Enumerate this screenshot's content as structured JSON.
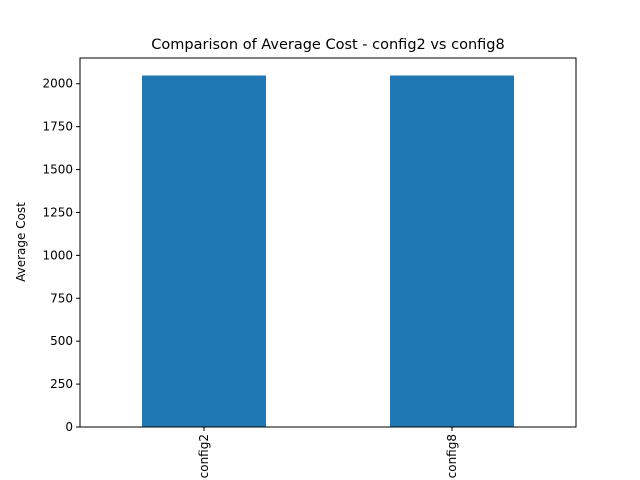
{
  "chart_data": {
    "type": "bar",
    "title": "Comparison of Average Cost - config2 vs config8",
    "xlabel": "",
    "ylabel": "Average Cost",
    "categories": [
      "config2",
      "config8"
    ],
    "values": [
      2048,
      2048
    ],
    "ylim": [
      0,
      2150
    ],
    "yticks": [
      0,
      250,
      500,
      750,
      1000,
      1250,
      1500,
      1750,
      2000
    ],
    "ytick_labels": [
      "0",
      "250",
      "500",
      "750",
      "1000",
      "1250",
      "1500",
      "1750",
      "2000"
    ],
    "grid": false,
    "legend": "none",
    "bar_color": "#1f77b4"
  }
}
